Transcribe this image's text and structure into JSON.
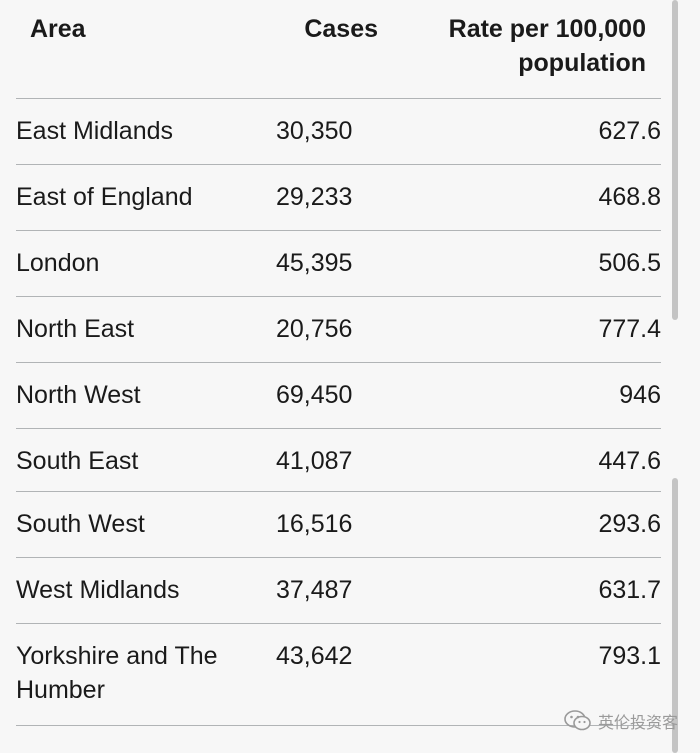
{
  "table": {
    "headers": {
      "area": "Area",
      "cases": "Cases",
      "rate": "Rate per 100,000 population"
    },
    "rows": [
      {
        "area": "East Midlands",
        "cases": "30,350",
        "rate": "627.6"
      },
      {
        "area": "East of England",
        "cases": "29,233",
        "rate": "468.8"
      },
      {
        "area": "London",
        "cases": "45,395",
        "rate": "506.5"
      },
      {
        "area": "North East",
        "cases": "20,756",
        "rate": "777.4"
      },
      {
        "area": "North West",
        "cases": "69,450",
        "rate": "946"
      },
      {
        "area": "South East",
        "cases": "41,087",
        "rate": "447.6"
      },
      {
        "area": "South West",
        "cases": "16,516",
        "rate": "293.6"
      },
      {
        "area": "West Midlands",
        "cases": "37,487",
        "rate": "631.7"
      },
      {
        "area": "Yorkshire and The Humber",
        "cases": "43,642",
        "rate": "793.1"
      }
    ]
  },
  "watermark": {
    "text": "英伦投资客",
    "icon": "wechat-icon"
  },
  "colors": {
    "background": "#f7f7f7",
    "text": "#1a1a1a",
    "divider": "#b1b4b6",
    "scrollbar": "#c4c4c4"
  }
}
